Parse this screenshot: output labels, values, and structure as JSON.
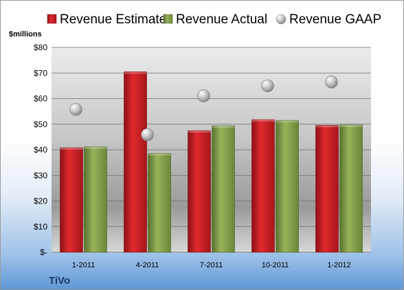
{
  "chart_data": {
    "type": "bar",
    "categories": [
      "1-2011",
      "4-2011",
      "7-2011",
      "10-2011",
      "1-2012"
    ],
    "series": [
      {
        "name": "Revenue Estimate",
        "kind": "bar",
        "color": "#cc1f24",
        "values": [
          40.8,
          70.5,
          47.5,
          51.8,
          49.6
        ]
      },
      {
        "name": "Revenue Actual",
        "kind": "bar",
        "color": "#7e9a45",
        "values": [
          41.2,
          38.6,
          49.4,
          51.5,
          49.7
        ]
      },
      {
        "name": "Revenue GAAP",
        "kind": "scatter",
        "color": "#a7a7a7",
        "values": [
          55.8,
          45.9,
          61.1,
          65.0,
          66.5
        ]
      }
    ],
    "ylabel": "$millions",
    "ylim": [
      0,
      80
    ],
    "y_ticks": [
      0,
      10,
      20,
      30,
      40,
      50,
      60,
      70,
      80
    ],
    "y_tick_labels": [
      "$-",
      "$10",
      "$20",
      "$30",
      "$40",
      "$50",
      "$60",
      "$70",
      "$80"
    ],
    "grid": true,
    "legend_position": "top",
    "brand": "TiVo"
  }
}
